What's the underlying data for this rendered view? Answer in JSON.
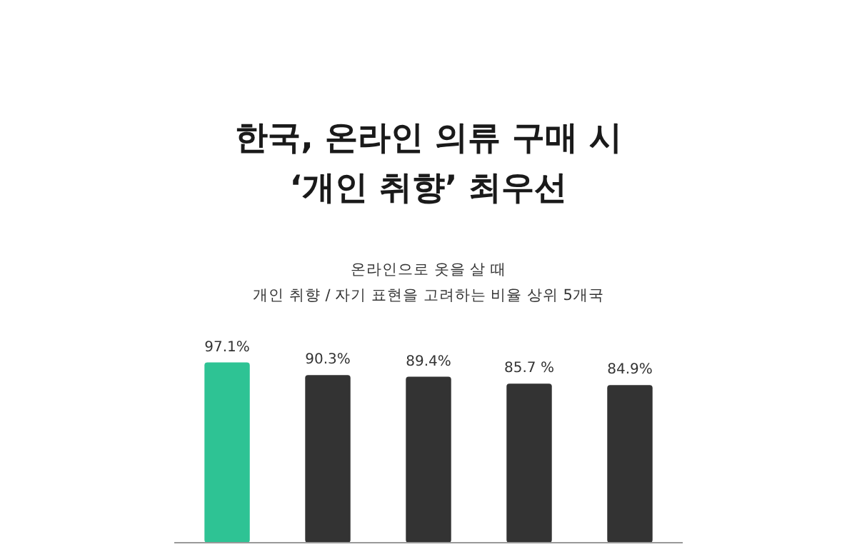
{
  "chart_data": {
    "type": "bar",
    "title": "한국, 온라인 의류 구매 시\n‘개인 취향’ 최우선",
    "subtitle": "온라인으로 옷을 살 때\n개인 취향 / 자기 표현을 고려하는 비율 상위 5개국",
    "categories": [
      null,
      null,
      null,
      null,
      null
    ],
    "values": [
      97.1,
      90.3,
      89.4,
      85.7,
      84.9
    ],
    "colors": [
      "#2ec394",
      "#333333",
      "#333333",
      "#333333",
      "#333333"
    ],
    "value_labels": [
      "97.1%",
      "90.3%",
      "89.4%",
      "85.7 %",
      "84.9%"
    ]
  }
}
